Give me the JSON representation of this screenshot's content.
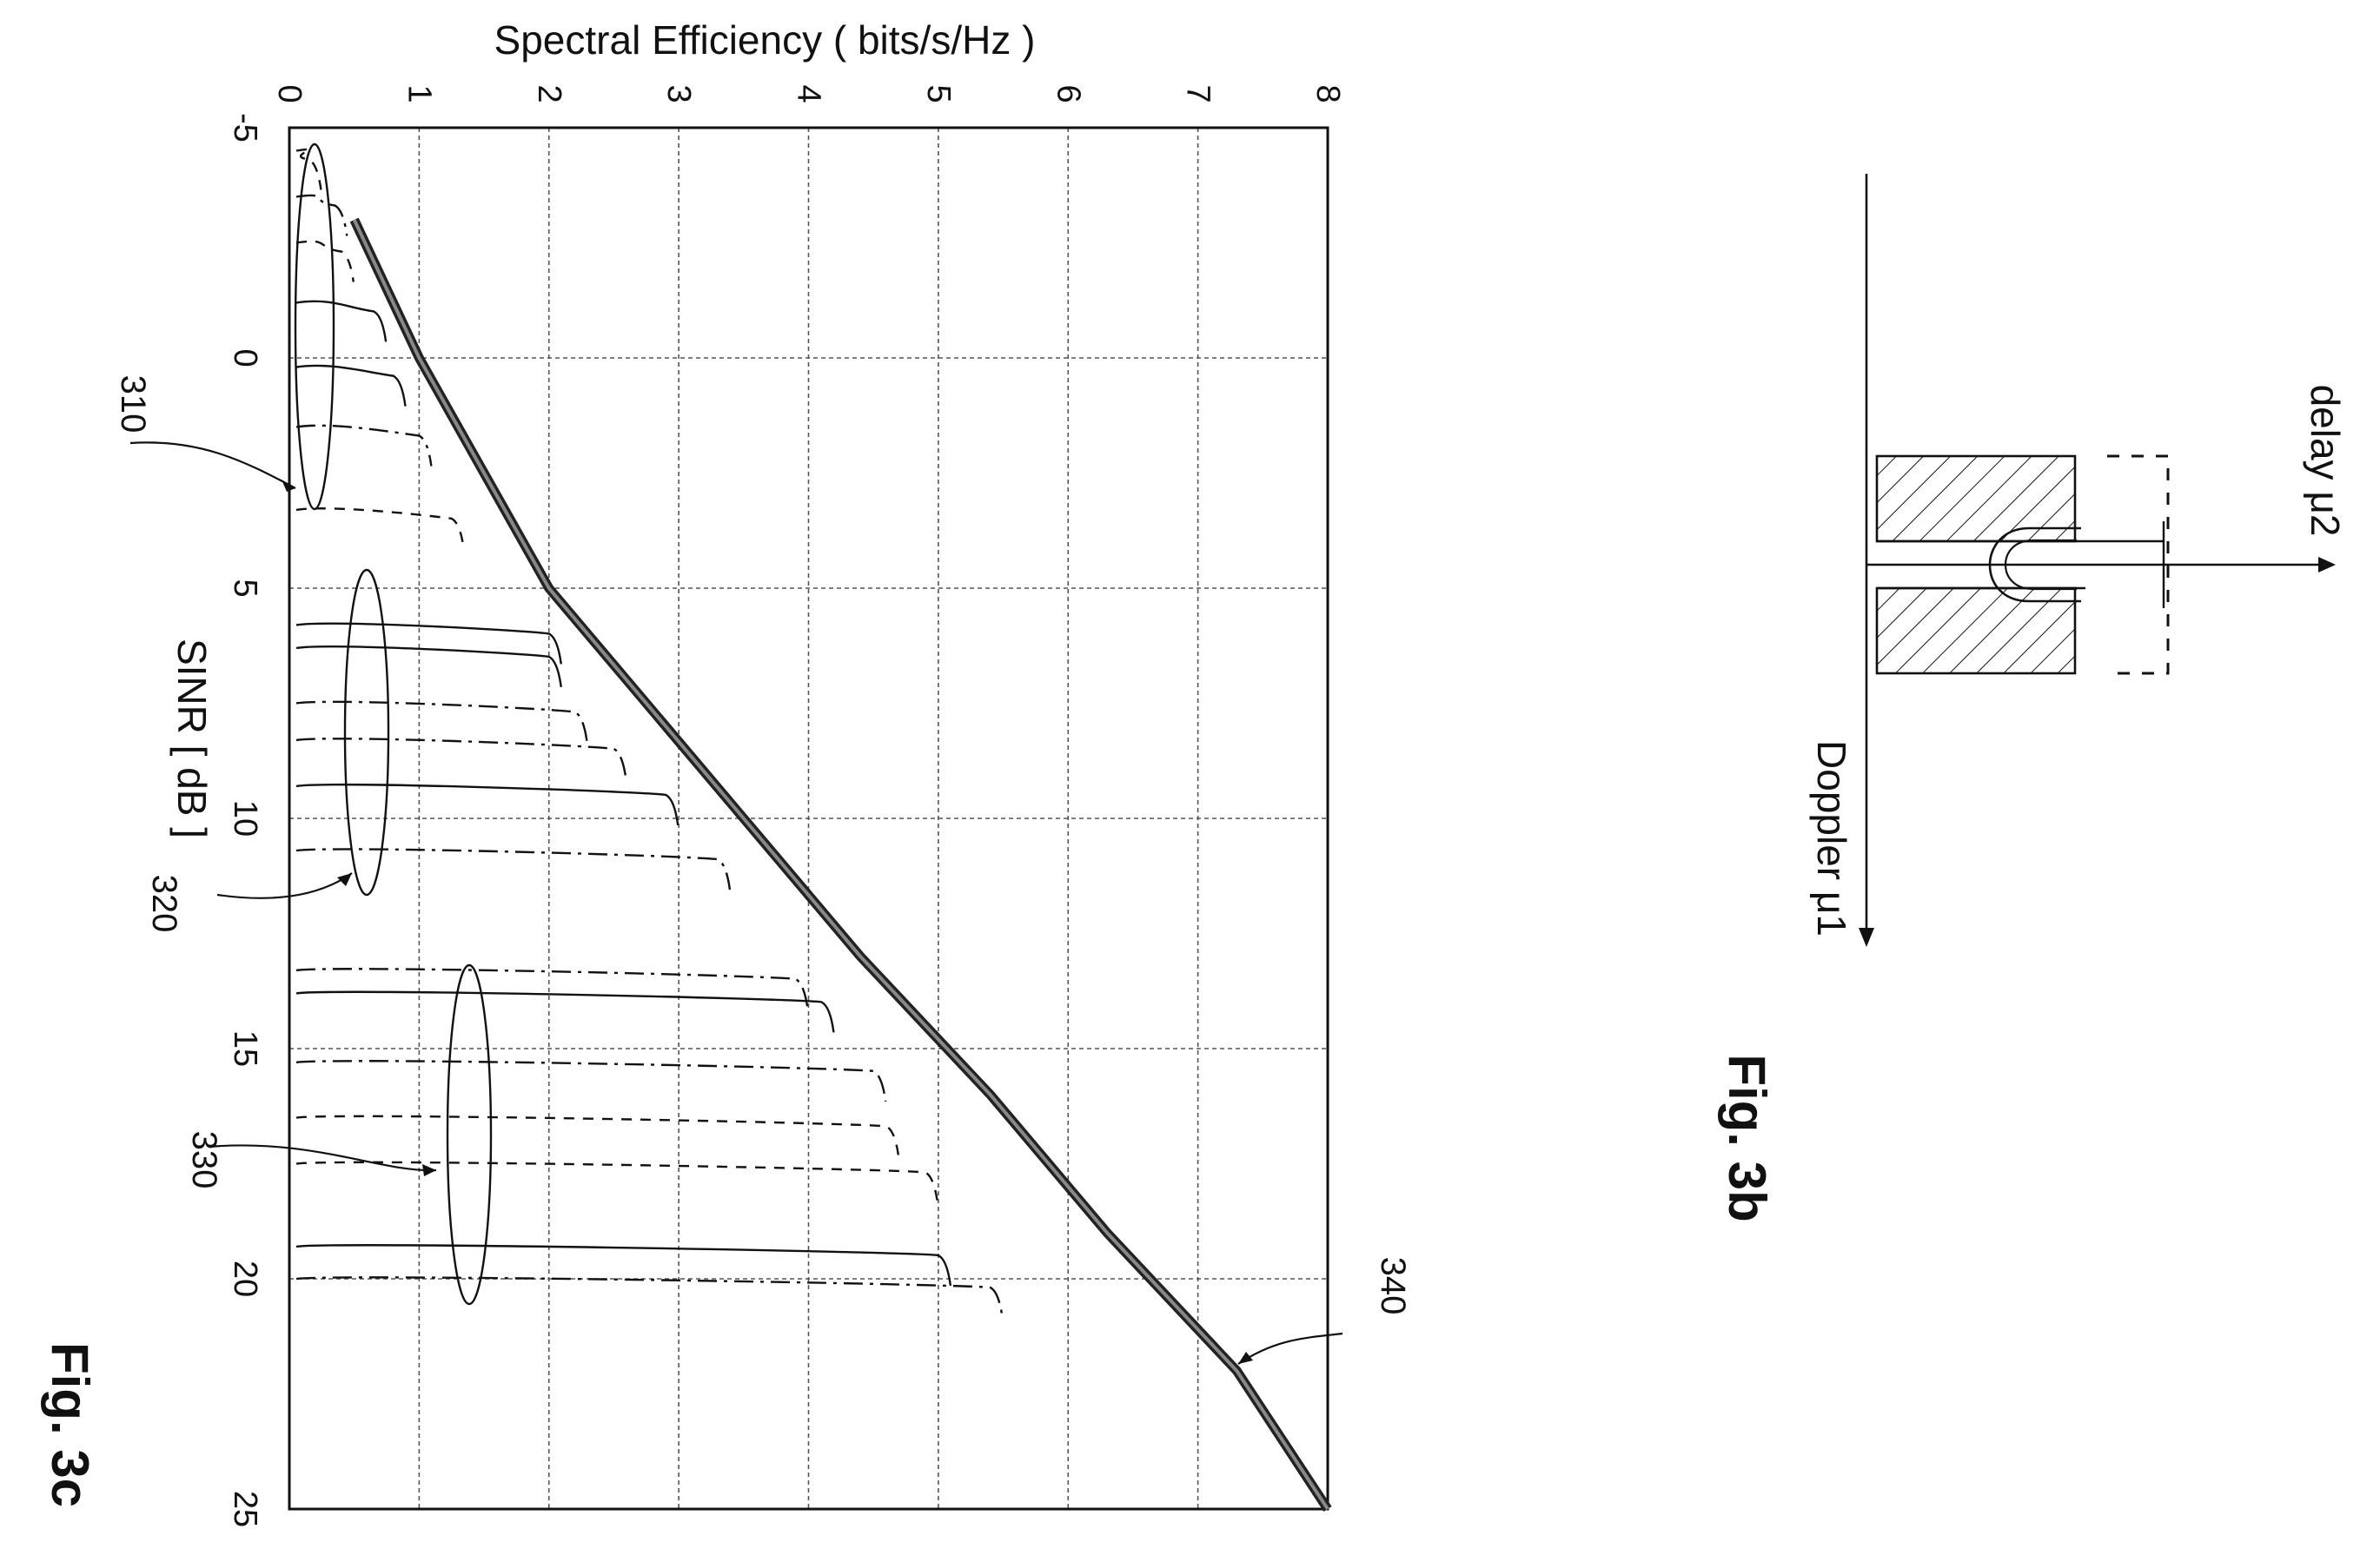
{
  "figure_3c": {
    "label": "Fig. 3c",
    "y_axis_title": "Spectral Efficiency ( bits/s/Hz )",
    "x_axis_title": "SINR [ dB ]",
    "refs": [
      "310",
      "320",
      "330",
      "340"
    ]
  },
  "figure_3b": {
    "label": "Fig. 3b",
    "axis_delay": "delay μ2",
    "axis_doppler": "Doppler μ1"
  },
  "chart_data": {
    "type": "line",
    "x_label": "SINR [ dB ]",
    "y_label": "Spectral Efficiency ( bits/s/Hz )",
    "x_range": [
      -5,
      25
    ],
    "y_range": [
      0,
      8
    ],
    "x_ticks": [
      "-5",
      "0",
      "5",
      "10",
      "15",
      "20",
      "25"
    ],
    "y_ticks": [
      "0",
      "1",
      "2",
      "3",
      "4",
      "5",
      "6",
      "7",
      "8"
    ],
    "grid": true,
    "series": [
      {
        "name": "340",
        "style": "thick",
        "x": [
          -3,
          0,
          3,
          5,
          7,
          10,
          13,
          16,
          19,
          22,
          25
        ],
        "y": [
          0.5,
          1.0,
          1.6,
          2.0,
          2.6,
          3.5,
          4.4,
          5.4,
          6.3,
          7.3,
          8.3
        ]
      },
      {
        "name": "",
        "group": "310",
        "style": "dashed",
        "threshold": -4.5,
        "y": 0.15
      },
      {
        "name": "",
        "group": "310",
        "style": "dashdot",
        "threshold": -3.5,
        "y": 0.35
      },
      {
        "name": "",
        "group": "310",
        "style": "dashed",
        "threshold": -2.5,
        "y": 0.4
      },
      {
        "name": "",
        "group": "310",
        "style": "solid",
        "threshold": -1.2,
        "y": 0.65
      },
      {
        "name": "",
        "group": "310",
        "style": "solid",
        "threshold": 0.2,
        "y": 0.8
      },
      {
        "name": "",
        "group": "310",
        "style": "dashdot",
        "threshold": 1.5,
        "y": 1.0
      },
      {
        "name": "",
        "group": "310",
        "style": "dashed",
        "threshold": 3.3,
        "y": 1.25
      },
      {
        "name": "",
        "group": "320",
        "style": "solid",
        "threshold": 5.8,
        "y": 2.0
      },
      {
        "name": "",
        "group": "320",
        "style": "solid",
        "threshold": 6.3,
        "y": 2.0
      },
      {
        "name": "",
        "group": "320",
        "style": "dashdot",
        "threshold": 7.5,
        "y": 2.2
      },
      {
        "name": "",
        "group": "320",
        "style": "dashdot",
        "threshold": 8.3,
        "y": 2.5
      },
      {
        "name": "",
        "group": "320",
        "style": "solid",
        "threshold": 9.3,
        "y": 2.9
      },
      {
        "name": "",
        "group": "320",
        "style": "dashdot",
        "threshold": 10.7,
        "y": 3.3
      },
      {
        "name": "",
        "group": "330",
        "style": "dashdot",
        "threshold": 13.3,
        "y": 3.9
      },
      {
        "name": "",
        "group": "330",
        "style": "solid",
        "threshold": 13.8,
        "y": 4.1
      },
      {
        "name": "",
        "group": "330",
        "style": "dashdot",
        "threshold": 15.3,
        "y": 4.5
      },
      {
        "name": "",
        "group": "330",
        "style": "dashed",
        "threshold": 16.5,
        "y": 4.6
      },
      {
        "name": "",
        "group": "330",
        "style": "dashed",
        "threshold": 17.5,
        "y": 4.9
      },
      {
        "name": "",
        "group": "330",
        "style": "solid",
        "threshold": 19.3,
        "y": 5.0
      },
      {
        "name": "",
        "group": "330",
        "style": "dashdot",
        "threshold": 20.0,
        "y": 5.4
      }
    ]
  }
}
